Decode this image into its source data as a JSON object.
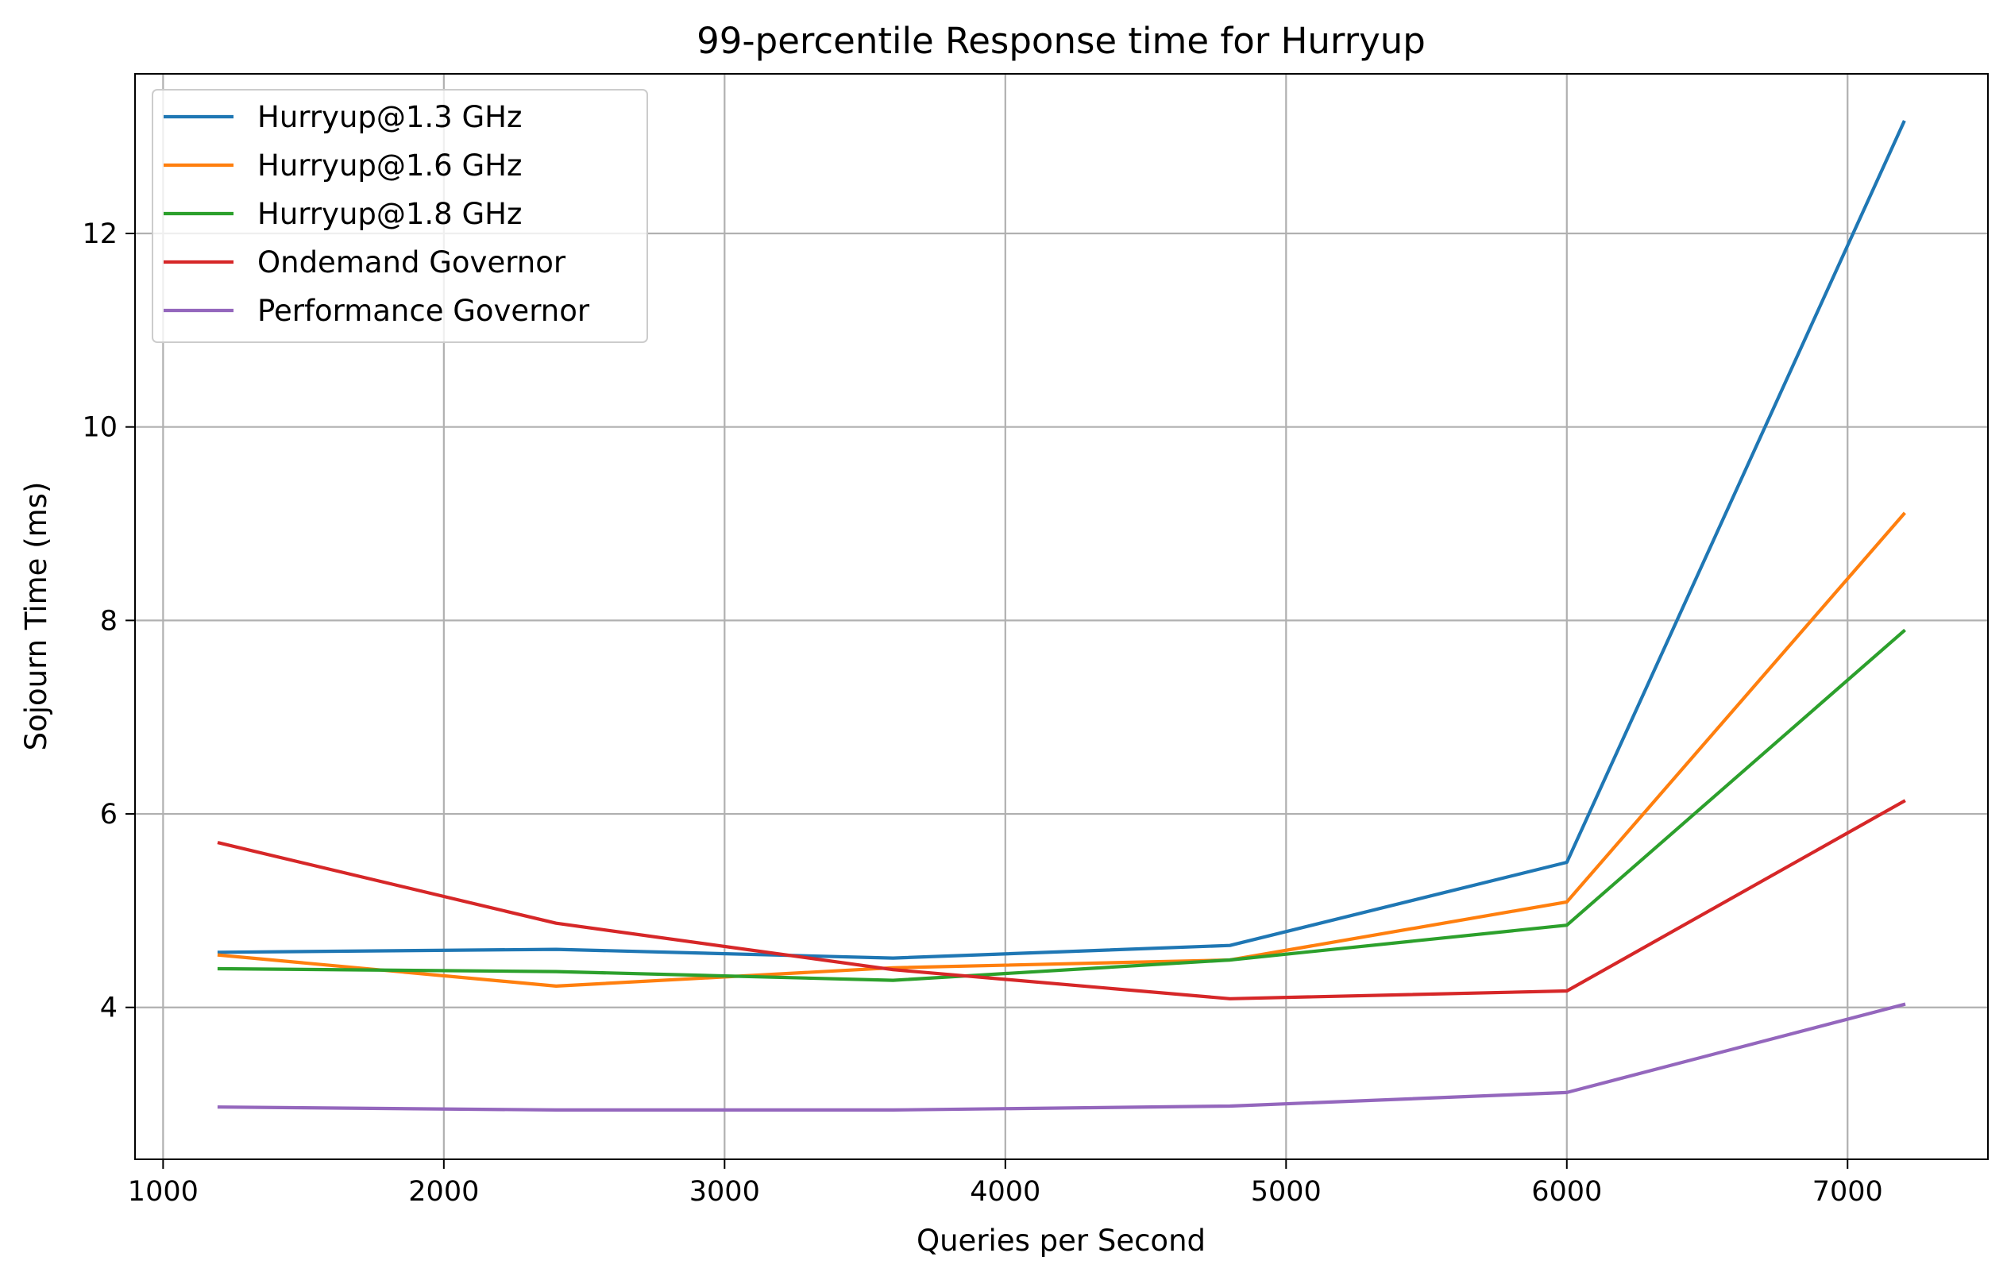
{
  "chart_data": {
    "type": "line",
    "title": "99-percentile Response time for Hurryup",
    "xlabel": "Queries per Second",
    "ylabel": "Sojourn Time (ms)",
    "xlim": [
      900,
      7500
    ],
    "ylim": [
      2.43,
      13.65
    ],
    "xticks": [
      1000,
      2000,
      3000,
      4000,
      5000,
      6000,
      7000
    ],
    "yticks": [
      4,
      6,
      8,
      10,
      12
    ],
    "grid": true,
    "legend_position": "upper-left",
    "x": [
      1200,
      2400,
      3600,
      4800,
      6000,
      7200
    ],
    "series": [
      {
        "name": "Hurryup@1.3 GHz",
        "color": "#1f77b4",
        "values": [
          4.57,
          4.6,
          4.51,
          4.64,
          5.5,
          13.15
        ]
      },
      {
        "name": "Hurryup@1.6 GHz",
        "color": "#ff7f0e",
        "values": [
          4.54,
          4.22,
          4.41,
          4.49,
          5.09,
          9.1
        ]
      },
      {
        "name": "Hurryup@1.8 GHz",
        "color": "#2ca02c",
        "values": [
          4.4,
          4.37,
          4.28,
          4.49,
          4.85,
          7.89
        ]
      },
      {
        "name": "Ondemand Governor",
        "color": "#d62728",
        "values": [
          5.7,
          4.87,
          4.39,
          4.09,
          4.17,
          6.13
        ]
      },
      {
        "name": "Performance Governor",
        "color": "#9467bd",
        "values": [
          2.97,
          2.94,
          2.94,
          2.98,
          3.12,
          4.03
        ]
      }
    ]
  }
}
